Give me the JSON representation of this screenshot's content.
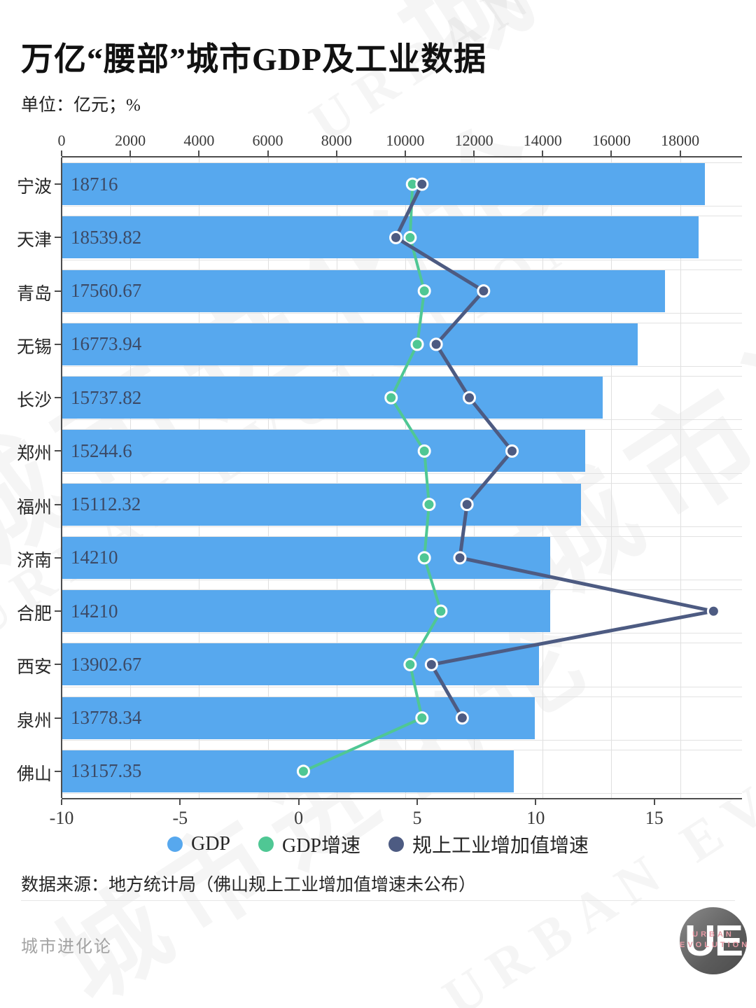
{
  "header": {
    "title": "万亿“腰部”城市GDP及工业数据",
    "unit_label": "单位：亿元；%"
  },
  "chart_data": {
    "type": "bar",
    "orientation": "horizontal",
    "title": "万亿“腰部”城市GDP及工业数据",
    "unit": "亿元；%",
    "categories": [
      "宁波",
      "天津",
      "青岛",
      "无锡",
      "长沙",
      "郑州",
      "福州",
      "济南",
      "合肥",
      "西安",
      "泉州",
      "佛山"
    ],
    "bar_series": {
      "name": "GDP",
      "axis": "top",
      "color": "#57a8ee",
      "values": [
        18716,
        18539.82,
        17560.67,
        16773.94,
        15737.82,
        15244.6,
        15112.32,
        14210,
        14210,
        13902.67,
        13778.34,
        13157.35
      ],
      "value_labels": [
        "18716",
        "18539.82",
        "17560.67",
        "16773.94",
        "15737.82",
        "15244.6",
        "15112.32",
        "14210",
        "14210",
        "13902.67",
        "13778.34",
        "13157.35"
      ]
    },
    "line_series": [
      {
        "name": "GDP增速",
        "axis": "bottom",
        "color": "#4fc794",
        "values": [
          4.8,
          4.7,
          5.3,
          5.0,
          3.9,
          5.3,
          5.5,
          5.3,
          6.0,
          4.7,
          5.2,
          0.2
        ]
      },
      {
        "name": "规上工业增加值增速",
        "axis": "bottom",
        "color": "#4d5b82",
        "values": [
          5.2,
          4.1,
          7.8,
          5.8,
          7.2,
          9.0,
          7.1,
          6.8,
          17.5,
          5.6,
          6.9,
          null
        ]
      }
    ],
    "top_axis": {
      "ticks": [
        0,
        2000,
        4000,
        6000,
        8000,
        10000,
        12000,
        14000,
        16000,
        18000
      ],
      "min": 0,
      "max": 19800
    },
    "bottom_axis": {
      "ticks": [
        -10,
        -5,
        0,
        5,
        10,
        15
      ],
      "min": -10,
      "max": 18.7
    },
    "grid": true,
    "legend_position": "bottom",
    "value_text_color": "#3c4a66",
    "axis_color": "#4d4d4d",
    "grid_color": "#dfdfdf"
  },
  "legend": {
    "items": [
      {
        "label": "GDP",
        "color": "#57a8ee"
      },
      {
        "label": "GDP增速",
        "color": "#4fc794"
      },
      {
        "label": "规上工业增加值增速",
        "color": "#4d5b82"
      }
    ]
  },
  "footer": {
    "source": "数据来源：地方统计局（佛山规上工业增加值增速未公布）",
    "brand": "城市进化论",
    "logo": {
      "monogram": "UE",
      "line1": "URBAN",
      "line2": "EVOLUTION"
    }
  },
  "watermark": {
    "cn": "城市进化论",
    "en": "URBAN EVOLUTION"
  }
}
